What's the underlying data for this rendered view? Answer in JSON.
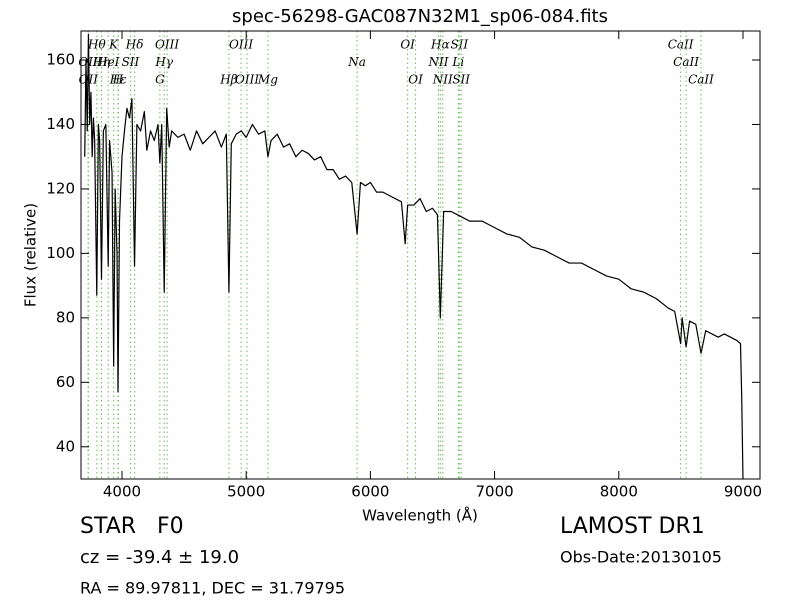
{
  "chart_data": {
    "type": "line",
    "title": "spec-56298-GAC087N32M1_sp06-084.fits",
    "x_label": "Wavelength (Å)",
    "y_label": "Flux (relative)",
    "xlim": [
      3670,
      9137
    ],
    "ylim": [
      30,
      169
    ],
    "xticks": [
      4000,
      5000,
      6000,
      7000,
      8000,
      9000
    ],
    "yticks": [
      40,
      60,
      80,
      100,
      120,
      140,
      160
    ],
    "line_color": "#66bb55",
    "line_labels": [
      [
        {
          "label": "Hθ",
          "x": 3798
        },
        {
          "label": "K",
          "x": 3933
        },
        {
          "label": "Hδ",
          "x": 4102
        },
        {
          "label": "OIII",
          "x": 4363
        },
        {
          "label": "OIII",
          "x": 4959
        },
        {
          "label": "OI",
          "x": 6300
        },
        {
          "label": "Hα",
          "x": 6563
        },
        {
          "label": "SII",
          "x": 6716
        },
        {
          "label": "CaII",
          "x": 8498
        }
      ],
      [
        {
          "label": "OII",
          "x": 3727
        },
        {
          "label": "Hη",
          "x": 3835
        },
        {
          "label": "HeI",
          "x": 3889
        },
        {
          "label": "SII",
          "x": 4068
        },
        {
          "label": "Hγ",
          "x": 4340
        },
        {
          "label": "Na",
          "x": 5893
        },
        {
          "label": "NII",
          "x": 6548
        },
        {
          "label": "Li",
          "x": 6708
        },
        {
          "label": "CaII",
          "x": 8542
        }
      ],
      [
        {
          "label": "OII",
          "x": 3729
        },
        {
          "label": "Hε",
          "x": 3970
        },
        {
          "label": "H",
          "x": 3968
        },
        {
          "label": "G",
          "x": 4305
        },
        {
          "label": "Hβ",
          "x": 4861
        },
        {
          "label": "OIII",
          "x": 5007
        },
        {
          "label": "Mg",
          "x": 5175
        },
        {
          "label": "OI",
          "x": 6364
        },
        {
          "label": "NII",
          "x": 6583
        },
        {
          "label": "SII",
          "x": 6731
        },
        {
          "label": "CaII",
          "x": 8662
        }
      ]
    ],
    "x": [
      3700,
      3710,
      3720,
      3730,
      3740,
      3750,
      3760,
      3770,
      3780,
      3797,
      3810,
      3820,
      3835,
      3850,
      3870,
      3889,
      3900,
      3920,
      3933,
      3945,
      3960,
      3968,
      3980,
      4000,
      4020,
      4040,
      4060,
      4080,
      4101,
      4120,
      4150,
      4180,
      4200,
      4230,
      4260,
      4290,
      4305,
      4320,
      4340,
      4360,
      4380,
      4400,
      4450,
      4500,
      4550,
      4600,
      4650,
      4700,
      4750,
      4800,
      4840,
      4861,
      4880,
      4920,
      4960,
      5000,
      5050,
      5100,
      5150,
      5175,
      5200,
      5250,
      5300,
      5350,
      5400,
      5450,
      5500,
      5550,
      5600,
      5650,
      5700,
      5750,
      5800,
      5850,
      5893,
      5920,
      5960,
      6000,
      6050,
      6100,
      6150,
      6200,
      6250,
      6280,
      6300,
      6350,
      6400,
      6450,
      6500,
      6540,
      6563,
      6590,
      6650,
      6700,
      6750,
      6800,
      6850,
      6900,
      6950,
      7000,
      7100,
      7200,
      7300,
      7400,
      7500,
      7600,
      7700,
      7800,
      7900,
      8000,
      8100,
      8200,
      8300,
      8400,
      8450,
      8498,
      8510,
      8542,
      8570,
      8620,
      8662,
      8700,
      8750,
      8800,
      8850,
      8900,
      8950,
      8980,
      8990,
      9000
    ],
    "series": [
      {
        "color": "#000000",
        "values": [
          130,
          160,
          138,
          168,
          140,
          150,
          130,
          142,
          135,
          87,
          140,
          135,
          92,
          138,
          140,
          96,
          135,
          125,
          65,
          120,
          100,
          57,
          110,
          130,
          138,
          145,
          142,
          148,
          96,
          140,
          138,
          144,
          132,
          138,
          135,
          140,
          128,
          140,
          88,
          145,
          133,
          138,
          136,
          137,
          132,
          138,
          134,
          136,
          138,
          133,
          137,
          88,
          134,
          137,
          138,
          136,
          140,
          137,
          138,
          130,
          135,
          137,
          133,
          134,
          130,
          132,
          131,
          129,
          130,
          126,
          126,
          123,
          124,
          122,
          106,
          122,
          121,
          122,
          119,
          119,
          118,
          117,
          116,
          103,
          115,
          115,
          117,
          113,
          114,
          112,
          80,
          113,
          113,
          112,
          111,
          110,
          110,
          110,
          109,
          108,
          106,
          105,
          102,
          101,
          99,
          97,
          97,
          95,
          93,
          92,
          89,
          88,
          86,
          83,
          82,
          72,
          80,
          71,
          79,
          78,
          69,
          76,
          75,
          74,
          75,
          74,
          73,
          72,
          55,
          30
        ]
      }
    ],
    "info_left": [
      "STAR   F0",
      "cz = -39.4 ± 19.0",
      "RA = 89.97811, DEC = 31.79795"
    ],
    "info_right": [
      "LAMOST DR1",
      "Obs-Date:20130105"
    ]
  }
}
